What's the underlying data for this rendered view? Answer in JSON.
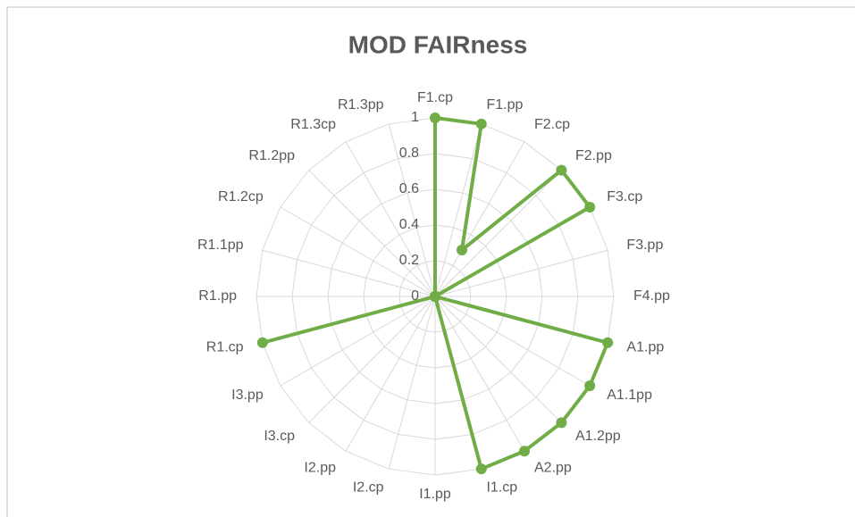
{
  "chart_data": {
    "type": "radar",
    "title": "MOD FAIRness",
    "categories": [
      "F1.cp",
      "F1.pp",
      "F2.cp",
      "F2.pp",
      "F3.cp",
      "F3.pp",
      "F4.pp",
      "A1.pp",
      "A1.1pp",
      "A1.2pp",
      "A2.pp",
      "I1.cp",
      "I1.pp",
      "I2.cp",
      "I2.pp",
      "I3.cp",
      "I3.pp",
      "R1.cp",
      "R1.pp",
      "R1.1pp",
      "R1.2cp",
      "R1.2pp",
      "R1.3cp",
      "R1.3pp"
    ],
    "series": [
      {
        "name": "MOD FAIRness",
        "color": "#70ad47",
        "values": [
          1,
          1,
          0.3,
          1,
          1,
          0,
          0,
          1,
          1,
          1,
          1,
          1,
          0,
          0,
          0,
          0,
          0,
          1,
          0,
          0,
          0,
          0,
          0,
          0
        ]
      }
    ],
    "ylim": [
      0,
      1
    ],
    "yticks": [
      0,
      0.2,
      0.4,
      0.6,
      0.8,
      1
    ],
    "grid": true
  }
}
